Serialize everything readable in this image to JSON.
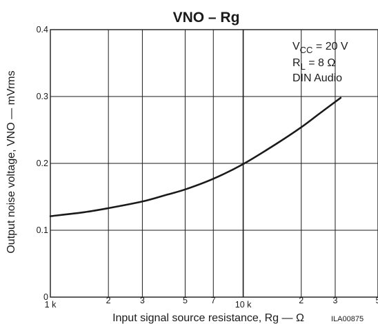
{
  "chart_data": {
    "type": "line",
    "title": "VNO – Rg",
    "xlabel": "Input signal source resistance, Rg — Ω",
    "ylabel": "Output noise voltage, VNO — mVrms",
    "x_scale": "log",
    "xlim": [
      1000,
      50000
    ],
    "ylim": [
      0,
      0.4
    ],
    "x_ticks": [
      {
        "value": 1000,
        "label": "1 k"
      },
      {
        "value": 2000,
        "label": "2"
      },
      {
        "value": 3000,
        "label": "3"
      },
      {
        "value": 5000,
        "label": "5"
      },
      {
        "value": 7000,
        "label": "7"
      },
      {
        "value": 10000,
        "label": "10 k"
      },
      {
        "value": 20000,
        "label": "2"
      },
      {
        "value": 30000,
        "label": "3"
      },
      {
        "value": 50000,
        "label": "5"
      }
    ],
    "x_minor_labels": [
      {
        "value": 1000,
        "label": "1 k"
      },
      {
        "value": 2000,
        "label": "2"
      },
      {
        "value": 3000,
        "label": "3"
      },
      {
        "value": 5000,
        "label": "5"
      },
      {
        "value": 7000,
        "label": "7"
      },
      {
        "value": 10000,
        "label": "10 k"
      },
      {
        "value": 20000,
        "label": "2"
      },
      {
        "value": 30000,
        "label": "3"
      },
      {
        "value": 50000,
        "label": "5"
      }
    ],
    "y_ticks": [
      {
        "value": 0,
        "label": "0"
      },
      {
        "value": 0.1,
        "label": "0.1"
      },
      {
        "value": 0.2,
        "label": "0.2"
      },
      {
        "value": 0.3,
        "label": "0.3"
      },
      {
        "value": 0.4,
        "label": "0.4"
      }
    ],
    "grid": true,
    "series": [
      {
        "x": [
          1000,
          1500,
          2000,
          3000,
          4000,
          5000,
          7000,
          10000,
          15000,
          20000,
          25000,
          32000
        ],
        "y": [
          0.121,
          0.127,
          0.133,
          0.143,
          0.153,
          0.161,
          0.177,
          0.199,
          0.23,
          0.254,
          0.275,
          0.298
        ]
      }
    ],
    "annotations": {
      "vcc_main": "V",
      "vcc_sub": "CC",
      "vcc_rest": " = 20 V",
      "rl_main": "R",
      "rl_sub": "L",
      "rl_rest": " = 8 Ω",
      "mode": "DIN Audio"
    },
    "figure_code": "ILA00875",
    "colors": {
      "line": "#1a1a1a",
      "grid": "#1a1a1a",
      "background": "#ffffff"
    }
  }
}
